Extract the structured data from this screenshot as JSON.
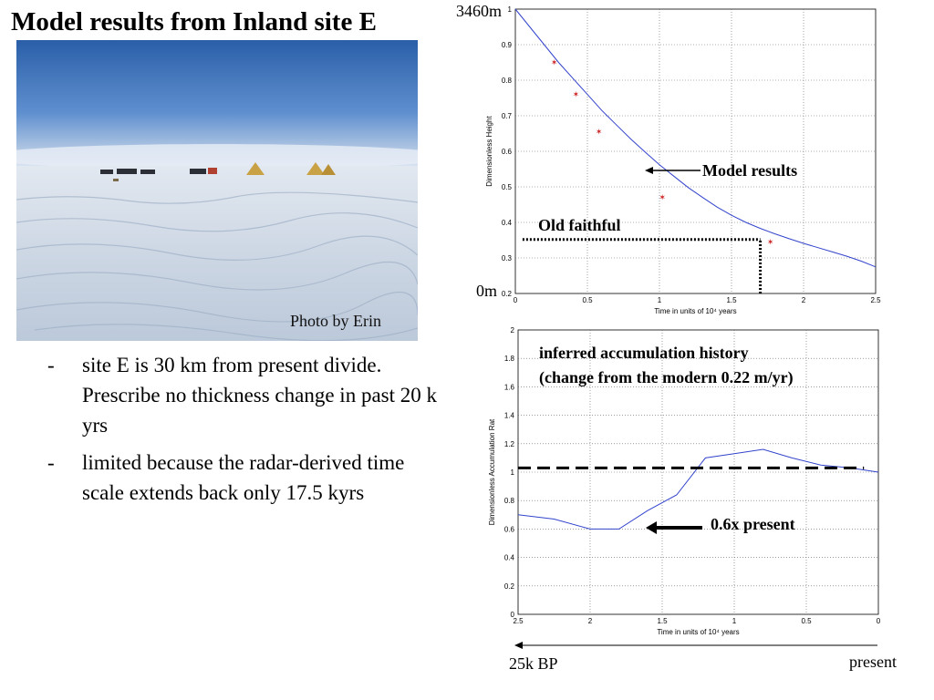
{
  "slide": {
    "title": "Model results from Inland site E",
    "photo_caption": "Photo by Erin",
    "bullets": [
      {
        "dash": "-",
        "text": "site E is 30 km from present divide. Prescribe no thickness change in past 20 k yrs"
      },
      {
        "dash": "-",
        "text": "limited because the radar-derived time scale extends back only 17.5 kyrs"
      }
    ],
    "timeline": {
      "left_label": "25k BP",
      "right_label": "present"
    }
  },
  "chart_data": [
    {
      "type": "line",
      "xlabel": "Time in units of 10⁴ years",
      "ylabel": "Dimensionless Height",
      "xlim": [
        0,
        2.5
      ],
      "ylim": [
        0.2,
        1.0
      ],
      "xticks": [
        "0",
        "0.5",
        "1",
        "1.5",
        "2",
        "2.5"
      ],
      "xtick_values": [
        0,
        0.5,
        1,
        1.5,
        2,
        2.5
      ],
      "yticks": [
        "0.2",
        "0.3",
        "0.4",
        "0.5",
        "0.6",
        "0.7",
        "0.8",
        "0.9",
        "1"
      ],
      "ytick_values": [
        0.2,
        0.3,
        0.4,
        0.5,
        0.6,
        0.7,
        0.8,
        0.9,
        1.0
      ],
      "grid": true,
      "series": [
        {
          "kind": "line",
          "color": "#3344cc",
          "x": [
            0,
            0.1,
            0.2,
            0.3,
            0.4,
            0.5,
            0.6,
            0.7,
            0.8,
            0.9,
            1.0,
            1.1,
            1.2,
            1.3,
            1.4,
            1.5,
            1.6,
            1.7,
            1.8,
            1.9,
            2.0,
            2.1,
            2.2,
            2.3,
            2.4,
            2.5
          ],
          "y": [
            1.0,
            0.95,
            0.9,
            0.85,
            0.805,
            0.76,
            0.715,
            0.675,
            0.635,
            0.598,
            0.562,
            0.53,
            0.498,
            0.47,
            0.443,
            0.42,
            0.4,
            0.383,
            0.368,
            0.354,
            0.341,
            0.329,
            0.317,
            0.305,
            0.291,
            0.275
          ]
        },
        {
          "kind": "scatter",
          "color": "#cc2222",
          "x": [
            0.27,
            0.42,
            0.58,
            1.02,
            1.77
          ],
          "y": [
            0.85,
            0.76,
            0.655,
            0.47,
            0.345
          ]
        }
      ],
      "hline": {
        "y": 0.352,
        "x_from": 0.05,
        "x_to": 1.7
      },
      "vline": {
        "x": 1.7,
        "y_from": 0.2,
        "y_to": 0.352
      },
      "annotations": {
        "top_label": "3460m",
        "bottom_label": "0m",
        "model_label": "Model results",
        "old_faithful_label": "Old faithful"
      }
    },
    {
      "type": "line",
      "xlabel": "Time in units of 10⁴ years",
      "ylabel": "Dimensionless Accumulation Rat",
      "xlim": [
        2.5,
        0
      ],
      "ylim": [
        0,
        2
      ],
      "xticks": [
        "2.5",
        "2",
        "1.5",
        "1",
        "0.5",
        "0"
      ],
      "xtick_values": [
        2.5,
        2,
        1.5,
        1,
        0.5,
        0
      ],
      "yticks": [
        "0",
        "0.2",
        "0.4",
        "0.6",
        "0.8",
        "1",
        "1.2",
        "1.4",
        "1.6",
        "1.8",
        "2"
      ],
      "ytick_values": [
        0,
        0.2,
        0.4,
        0.6,
        0.8,
        1.0,
        1.2,
        1.4,
        1.6,
        1.8,
        2.0
      ],
      "grid": true,
      "series": [
        {
          "kind": "line",
          "color": "#3344cc",
          "x": [
            2.5,
            2.25,
            2.0,
            1.8,
            1.6,
            1.4,
            1.2,
            1.0,
            0.8,
            0.6,
            0.4,
            0.2,
            0.0
          ],
          "y": [
            0.7,
            0.67,
            0.6,
            0.6,
            0.73,
            0.84,
            1.1,
            1.13,
            1.16,
            1.1,
            1.05,
            1.03,
            1.0
          ]
        }
      ],
      "hline_dashed": {
        "y": 1.03,
        "x_from": 2.5,
        "x_to": 0.1
      },
      "annotations": {
        "title_line1": "inferred accumulation history",
        "title_line2": "(change from the modern 0.22 m/yr)",
        "arrow_label": "0.6x present"
      }
    }
  ]
}
